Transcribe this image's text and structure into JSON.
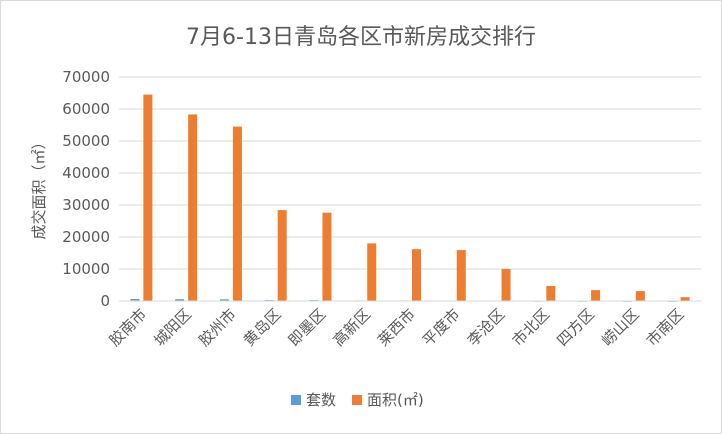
{
  "chart_data": {
    "type": "bar",
    "title": "7月6-13日青岛各区市新房成交排行",
    "ylabel": "成交面积（㎡）",
    "xlabel": "",
    "ylim": [
      0,
      70000
    ],
    "yticks": [
      0,
      10000,
      20000,
      30000,
      40000,
      50000,
      60000,
      70000
    ],
    "ytick_labels": [
      "0",
      "10000",
      "20000",
      "30000",
      "40000",
      "50000",
      "60000",
      "70000"
    ],
    "grid": true,
    "legend_position": "bottom",
    "categories": [
      "胶南市",
      "城阳区",
      "胶州市",
      "黄岛区",
      "即墨区",
      "高新区",
      "莱西市",
      "平度市",
      "李沧区",
      "市北区",
      "四方区",
      "崂山区",
      "市南区"
    ],
    "series": [
      {
        "name": "套数",
        "color": "#5b9bd5",
        "values": [
          620,
          560,
          520,
          290,
          270,
          180,
          180,
          160,
          110,
          50,
          40,
          30,
          15
        ]
      },
      {
        "name": "面积(㎡)",
        "color": "#ed7d31",
        "values": [
          64500,
          58300,
          54500,
          28400,
          27600,
          18000,
          16200,
          15900,
          10000,
          4700,
          3400,
          3100,
          1200
        ]
      }
    ]
  }
}
